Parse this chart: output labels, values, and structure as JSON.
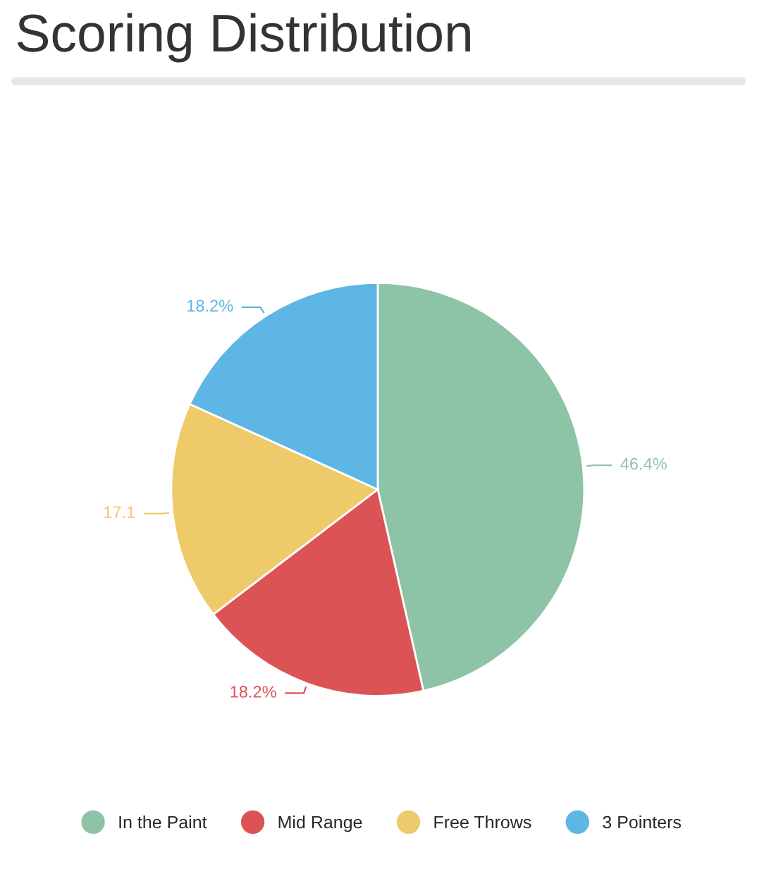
{
  "chart_data": {
    "type": "pie",
    "title": "Scoring Distribution",
    "categories": [
      "In the Paint",
      "Mid Range",
      "Free Throws",
      "3 Pointers"
    ],
    "values": [
      46.4,
      18.2,
      17.1,
      18.2
    ],
    "value_labels": [
      "46.4%",
      "18.2%",
      "17.1",
      "18.2%"
    ],
    "colors": [
      "#8dc3a7",
      "#dc5356",
      "#efca6a",
      "#5db6e4"
    ],
    "legend": "bottom"
  }
}
